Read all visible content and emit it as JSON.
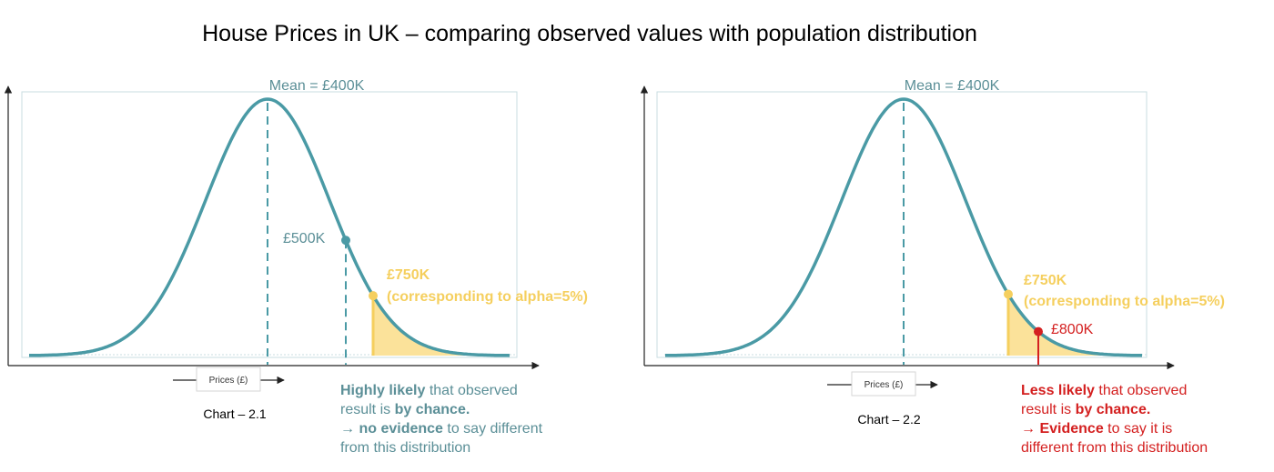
{
  "title": "House Prices in UK – comparing observed values with population distribution",
  "colors": {
    "curve": "#4a9aa5",
    "text_teal": "#5b8f97",
    "alpha_yellow": "#f5cf5e",
    "alpha_fill": "#fbe29a",
    "evidence_red": "#d42020",
    "axis": "#222222",
    "frame": "#c9dce2"
  },
  "icons": [
    "axis-arrow-icon",
    "point-marker-icon",
    "shaded-tail-area"
  ],
  "charts": [
    {
      "caption": "Chart – 2.1",
      "axis_label": "Prices (£)",
      "mean_label": "Mean = £400K",
      "alpha_label_line1": "£750K",
      "alpha_label_line2": "(corresponding to alpha=5%)",
      "observed_label": "£500K",
      "note": {
        "line1_bold": "Highly likely",
        "line1_rest": " that observed",
        "line2_pre": "result is ",
        "line2_bold": "by chance.",
        "line3_arrow": "→ ",
        "line3_bold": "no evidence",
        "line3_rest": " to say different",
        "line4": "from this distribution"
      }
    },
    {
      "caption": "Chart – 2.2",
      "axis_label": "Prices (£)",
      "mean_label": "Mean = £400K",
      "alpha_label_line1": "£750K",
      "alpha_label_line2": "(corresponding to alpha=5%)",
      "observed_label": "£800K",
      "note": {
        "line1_bold": "Less likely",
        "line1_rest": " that observed",
        "line2_pre": "result is ",
        "line2_bold": "by chance.",
        "line3_arrow": "→ ",
        "line3_bold": "Evidence",
        "line3_rest": " to say it is",
        "line4": "different from this distribution"
      }
    }
  ]
}
